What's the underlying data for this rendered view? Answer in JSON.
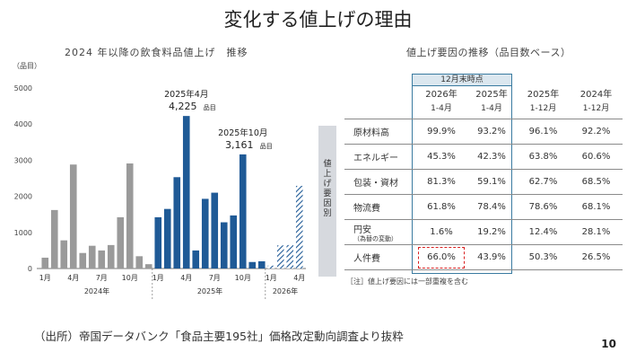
{
  "page": {
    "title": "変化する値上げの理由",
    "source": "（出所）帝国データバンク「食品主要195社」価格改定動向調査より抜粋",
    "page_number": "10"
  },
  "chart_data": {
    "type": "bar",
    "title": "2024 年以降の飲食料品値上げ　推移",
    "ylabel": "（品目）",
    "ylim": [
      0,
      5000
    ],
    "yticks": [
      "0",
      "1000",
      "2000",
      "3000",
      "4000",
      "5000"
    ],
    "xtick_labels": [
      {
        "i": 0,
        "label": "1月"
      },
      {
        "i": 3,
        "label": "4月"
      },
      {
        "i": 6,
        "label": "7月"
      },
      {
        "i": 9,
        "label": "10月"
      },
      {
        "i": 12,
        "label": "1月"
      },
      {
        "i": 15,
        "label": "4月"
      },
      {
        "i": 18,
        "label": "7月"
      },
      {
        "i": 21,
        "label": "10月"
      },
      {
        "i": 24,
        "label": "1月"
      },
      {
        "i": 27,
        "label": "4月"
      }
    ],
    "year_labels": [
      {
        "start": 0,
        "end": 11,
        "label": "2024年"
      },
      {
        "start": 12,
        "end": 23,
        "label": "2025年"
      },
      {
        "start": 24,
        "end": 27,
        "label": "2026年"
      }
    ],
    "series": [
      {
        "name": "2024年",
        "color": "#9a9a9a",
        "start": 0,
        "values": [
          300,
          1620,
          780,
          2880,
          430,
          630,
          500,
          650,
          1420,
          2910,
          340,
          120
        ]
      },
      {
        "name": "2025年",
        "color": "#1f5a96",
        "start": 12,
        "values": [
          1420,
          1650,
          2530,
          4225,
          500,
          1930,
          2100,
          1280,
          1470,
          3161,
          180,
          200
        ]
      },
      {
        "name": "2026年",
        "color": "#1f5a96",
        "pattern": "hatch",
        "start": 24,
        "values": [
          80,
          640,
          650,
          2290
        ]
      }
    ],
    "annotations": [
      {
        "bar": 15,
        "line1": "2025年4月",
        "line2": "4,225",
        "unit": "品目"
      },
      {
        "bar": 21,
        "line1": "2025年10月",
        "line2": "3,161",
        "unit": "品目"
      }
    ]
  },
  "table": {
    "title": "値上げ要因の推移（品目数ベース）",
    "side_label": "値上げ要因別",
    "highlight_label": "12月末時点",
    "columns": [
      {
        "year": "2026年",
        "range": "1-4月"
      },
      {
        "year": "2025年",
        "range": "1-4月"
      },
      {
        "year": "2025年",
        "range": "1-12月"
      },
      {
        "year": "2024年",
        "range": "1-12月"
      }
    ],
    "rows": [
      {
        "label": "原材料高",
        "values": [
          "99.9%",
          "93.2%",
          "96.1%",
          "92.2%"
        ]
      },
      {
        "label": "エネルギー",
        "values": [
          "45.3%",
          "42.3%",
          "63.8%",
          "60.6%"
        ]
      },
      {
        "label": "包装・資材",
        "values": [
          "81.3%",
          "59.1%",
          "62.7%",
          "68.5%"
        ]
      },
      {
        "label": "物流費",
        "values": [
          "61.8%",
          "78.4%",
          "78.6%",
          "68.1%"
        ]
      },
      {
        "label": "円安",
        "sublabel": "（為替の変動）",
        "values": [
          "1.6%",
          "19.2%",
          "12.4%",
          "28.1%"
        ]
      },
      {
        "label": "人件費",
        "values": [
          "66.0%",
          "43.9%",
          "50.3%",
          "26.5%"
        ],
        "highlight_first": true
      }
    ],
    "note": "［注］値上げ要因には一部重複を含む"
  }
}
